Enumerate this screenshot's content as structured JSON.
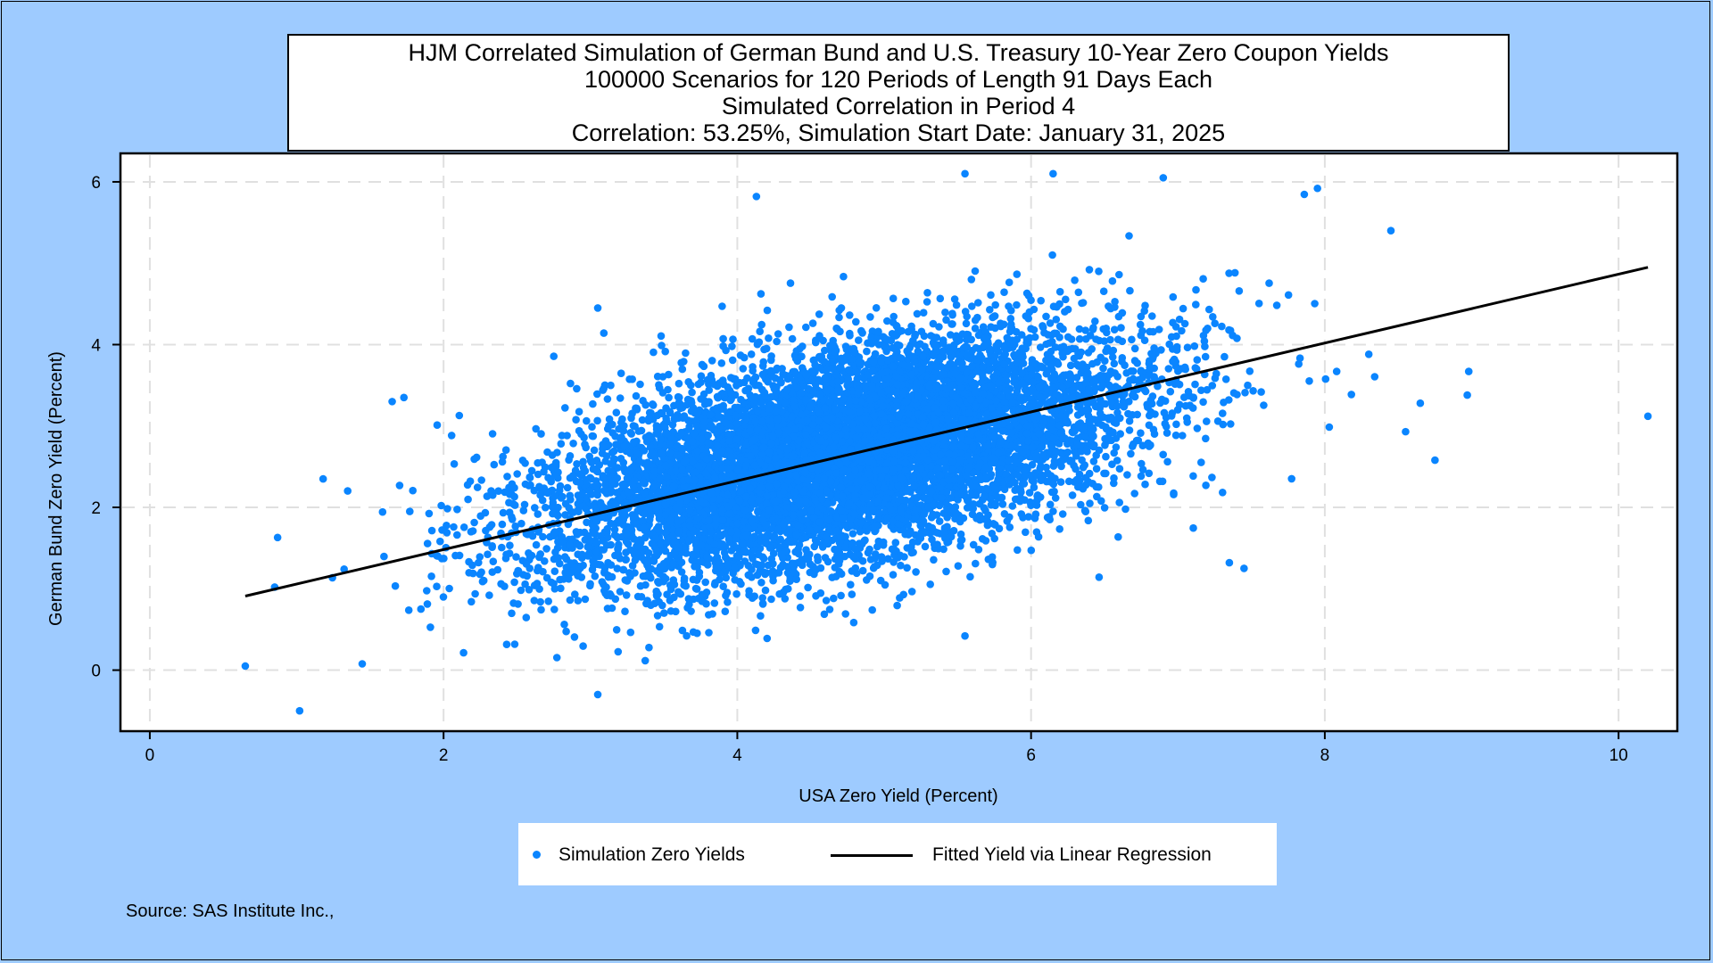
{
  "chart_data": {
    "type": "scatter",
    "title_lines": [
      "HJM Correlated Simulation of German Bund and U.S. Treasury 10-Year Zero Coupon Yields",
      "100000 Scenarios for 120 Periods of Length 91 Days Each",
      "Simulated Correlation in Period 4",
      "Correlation: 53.25%,  Simulation Start Date:   January 31, 2025"
    ],
    "xlabel": "USA Zero Yield (Percent)",
    "ylabel": "German Bund Zero Yield (Percent)",
    "xlim": [
      -0.2,
      10.4
    ],
    "ylim": [
      -0.75,
      6.35
    ],
    "x_ticks": [
      0,
      2,
      4,
      6,
      8,
      10
    ],
    "y_ticks": [
      0,
      2,
      4,
      6
    ],
    "grid": true,
    "legend_position": "bottom",
    "series": [
      {
        "name": "Simulation Zero Yields",
        "color": "#0A85FF",
        "marker": "dot",
        "distribution": {
          "x_mean": 4.7,
          "x_sd": 1.0,
          "y_mean": 2.65,
          "y_sd": 0.75,
          "correlation": 0.5325,
          "plotted_sample": 9000
        },
        "outliers": [
          {
            "x": 0.65,
            "y": 0.05
          },
          {
            "x": 1.02,
            "y": -0.5
          },
          {
            "x": 0.87,
            "y": 1.63
          },
          {
            "x": 0.85,
            "y": 1.02
          },
          {
            "x": 1.18,
            "y": 2.35
          },
          {
            "x": 1.65,
            "y": 3.3
          },
          {
            "x": 1.73,
            "y": 3.35
          },
          {
            "x": 3.05,
            "y": 4.45
          },
          {
            "x": 4.13,
            "y": 5.82
          },
          {
            "x": 5.55,
            "y": 6.1
          },
          {
            "x": 6.15,
            "y": 6.1
          },
          {
            "x": 6.9,
            "y": 6.05
          },
          {
            "x": 7.95,
            "y": 5.92
          },
          {
            "x": 8.45,
            "y": 5.4
          },
          {
            "x": 8.75,
            "y": 2.58
          },
          {
            "x": 8.98,
            "y": 3.67
          },
          {
            "x": 8.97,
            "y": 3.38
          },
          {
            "x": 10.2,
            "y": 3.12
          },
          {
            "x": 8.65,
            "y": 3.28
          },
          {
            "x": 8.55,
            "y": 2.93
          },
          {
            "x": 7.35,
            "y": 1.32
          },
          {
            "x": 7.45,
            "y": 1.25
          },
          {
            "x": 5.55,
            "y": 0.42
          },
          {
            "x": 3.05,
            "y": -0.3
          }
        ]
      },
      {
        "name": "Fitted Yield via Linear Regression",
        "color": "#000000",
        "type": "line",
        "x": [
          0.65,
          10.2
        ],
        "y": [
          0.91,
          4.95
        ]
      }
    ]
  },
  "source_note": "Source: SAS Institute Inc.,"
}
